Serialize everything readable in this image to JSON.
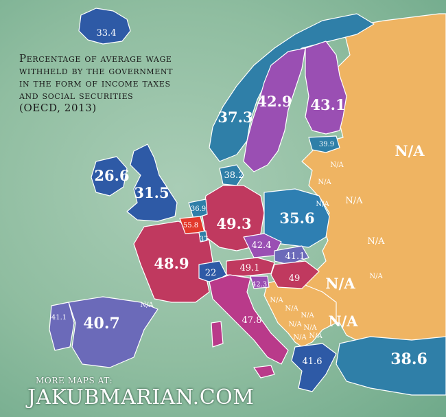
{
  "title_lines": [
    "Percentage of average wage",
    "withheld by the government",
    "in the form of income taxes",
    "and social securities",
    "(OECD, 2013)"
  ],
  "credit": {
    "line1": "MORE MAPS AT:",
    "line2": "JAKUBMARIAN.COM"
  },
  "colors": {
    "na": "#efb462",
    "low_blue": "#2e5aa6",
    "mid_blue": "#2e7fb2",
    "teal_blue": "#2f7fa8",
    "violet": "#9a4fb3",
    "magenta": "#b93a8a",
    "crimson": "#c0395f",
    "red": "#e23a2c",
    "periwinkle": "#6b6ab9"
  },
  "countries": [
    {
      "name": "Iceland",
      "value": "33.4"
    },
    {
      "name": "Norway",
      "value": "37.3"
    },
    {
      "name": "Sweden",
      "value": "42.9"
    },
    {
      "name": "Finland",
      "value": "43.1"
    },
    {
      "name": "Estonia",
      "value": "39.9"
    },
    {
      "name": "Ireland",
      "value": "26.6"
    },
    {
      "name": "United Kingdom",
      "value": "31.5"
    },
    {
      "name": "Denmark",
      "value": "38.2"
    },
    {
      "name": "Netherlands",
      "value": "36.9"
    },
    {
      "name": "Belgium",
      "value": "55.8"
    },
    {
      "name": "Luxembourg",
      "value": "37"
    },
    {
      "name": "Germany",
      "value": "49.3"
    },
    {
      "name": "Poland",
      "value": "35.6"
    },
    {
      "name": "Czech Republic",
      "value": "42.4"
    },
    {
      "name": "Slovakia",
      "value": "41.1"
    },
    {
      "name": "France",
      "value": "48.9"
    },
    {
      "name": "Switzerland",
      "value": "22"
    },
    {
      "name": "Austria",
      "value": "49.1"
    },
    {
      "name": "Hungary",
      "value": "49"
    },
    {
      "name": "Slovenia",
      "value": "42.3"
    },
    {
      "name": "Portugal",
      "value": "41.1"
    },
    {
      "name": "Spain",
      "value": "40.7"
    },
    {
      "name": "Italy",
      "value": "47.8"
    },
    {
      "name": "Greece",
      "value": "41.6"
    },
    {
      "name": "Turkey",
      "value": "38.6"
    },
    {
      "name": "Russia",
      "value": "N/A"
    },
    {
      "name": "Latvia",
      "value": "N/A"
    },
    {
      "name": "Lithuania",
      "value": "N/A"
    },
    {
      "name": "Belarus",
      "value": "N/A"
    },
    {
      "name": "Ukraine",
      "value": "N/A"
    },
    {
      "name": "Romania",
      "value": "N/A"
    },
    {
      "name": "Bulgaria",
      "value": "N/A"
    },
    {
      "name": "Andorra",
      "value": "N/A"
    },
    {
      "name": "Croatia",
      "value": "N/A"
    },
    {
      "name": "Bosnia",
      "value": "N/A"
    },
    {
      "name": "Serbia",
      "value": "N/A"
    },
    {
      "name": "Montenegro",
      "value": "N/A"
    },
    {
      "name": "Kosovo",
      "value": "N/A"
    },
    {
      "name": "Macedonia",
      "value": "N/A"
    },
    {
      "name": "Albania",
      "value": "N/A"
    },
    {
      "name": "Moldova",
      "value": "N/A"
    },
    {
      "name": "Kaliningrad",
      "value": "N/A"
    }
  ]
}
